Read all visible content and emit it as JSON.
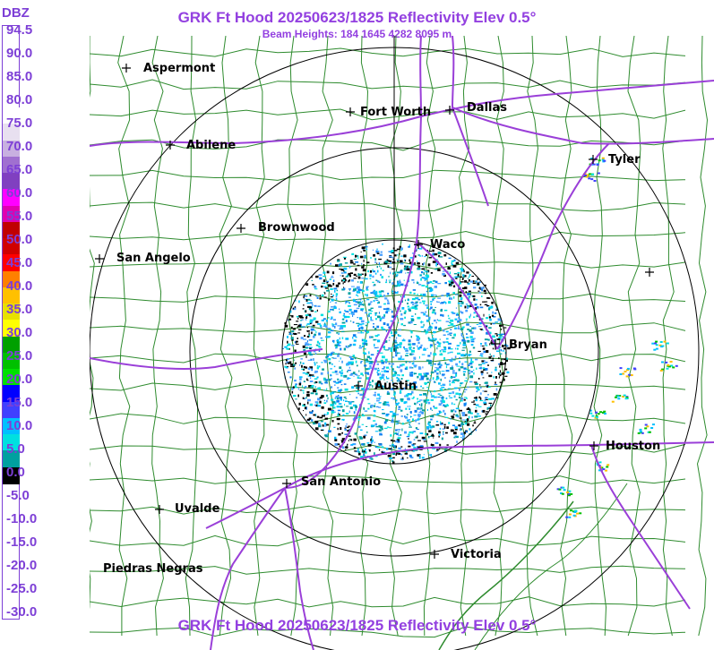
{
  "header": {
    "title": "GRK Ft Hood 20250623/1825 Reflectivity Elev 0.5°",
    "subtitle": "Beam Heights: 184 1645 4282 8095 m"
  },
  "footer": {
    "title": "GRK Ft Hood 20250623/1825 Reflectivity Elev 0.5°"
  },
  "legend": {
    "unit": "DBZ",
    "ticks": [
      "94.5",
      "90.0",
      "85.0",
      "80.0",
      "75.0",
      "70.0",
      "65.0",
      "60.0",
      "55.0",
      "50.0",
      "45.0",
      "40.0",
      "35.0",
      "30.0",
      "25.0",
      "20.0",
      "15.0",
      "10.0",
      "5.0",
      "0.0",
      "-5.0",
      "-10.0",
      "-15.0",
      "-20.0",
      "-25.0",
      "-30.0"
    ],
    "colors": [
      "#ffffff",
      "#e8e0f0",
      "#c8b0e0",
      "#a070d0",
      "#8040c0",
      "#ff00ff",
      "#e000b0",
      "#c00000",
      "#d00000",
      "#ff0000",
      "#ff8000",
      "#ffc000",
      "#e8e000",
      "#ffff00",
      "#00a000",
      "#00c000",
      "#00e000",
      "#0000ff",
      "#4040ff",
      "#00c0ff",
      "#00e0e0",
      "#00a0a0",
      "#000000"
    ]
  },
  "cities": [
    {
      "name": "Aspermont"
    },
    {
      "name": "Fort Worth"
    },
    {
      "name": "Dallas"
    },
    {
      "name": "Abilene"
    },
    {
      "name": "Tyler"
    },
    {
      "name": "Brownwood"
    },
    {
      "name": "Waco"
    },
    {
      "name": "San Angelo"
    },
    {
      "name": "Bryan"
    },
    {
      "name": "Austin"
    },
    {
      "name": "Houston"
    },
    {
      "name": "San Antonio"
    },
    {
      "name": "Uvalde"
    },
    {
      "name": "Victoria"
    },
    {
      "name": "Piedras Negras"
    },
    {
      "name": ""
    }
  ],
  "colors": {
    "text_accent": "#9340e0",
    "county_lines": "#2e8b2e",
    "roads": "#9a3fd8",
    "range_rings": "#000000"
  }
}
